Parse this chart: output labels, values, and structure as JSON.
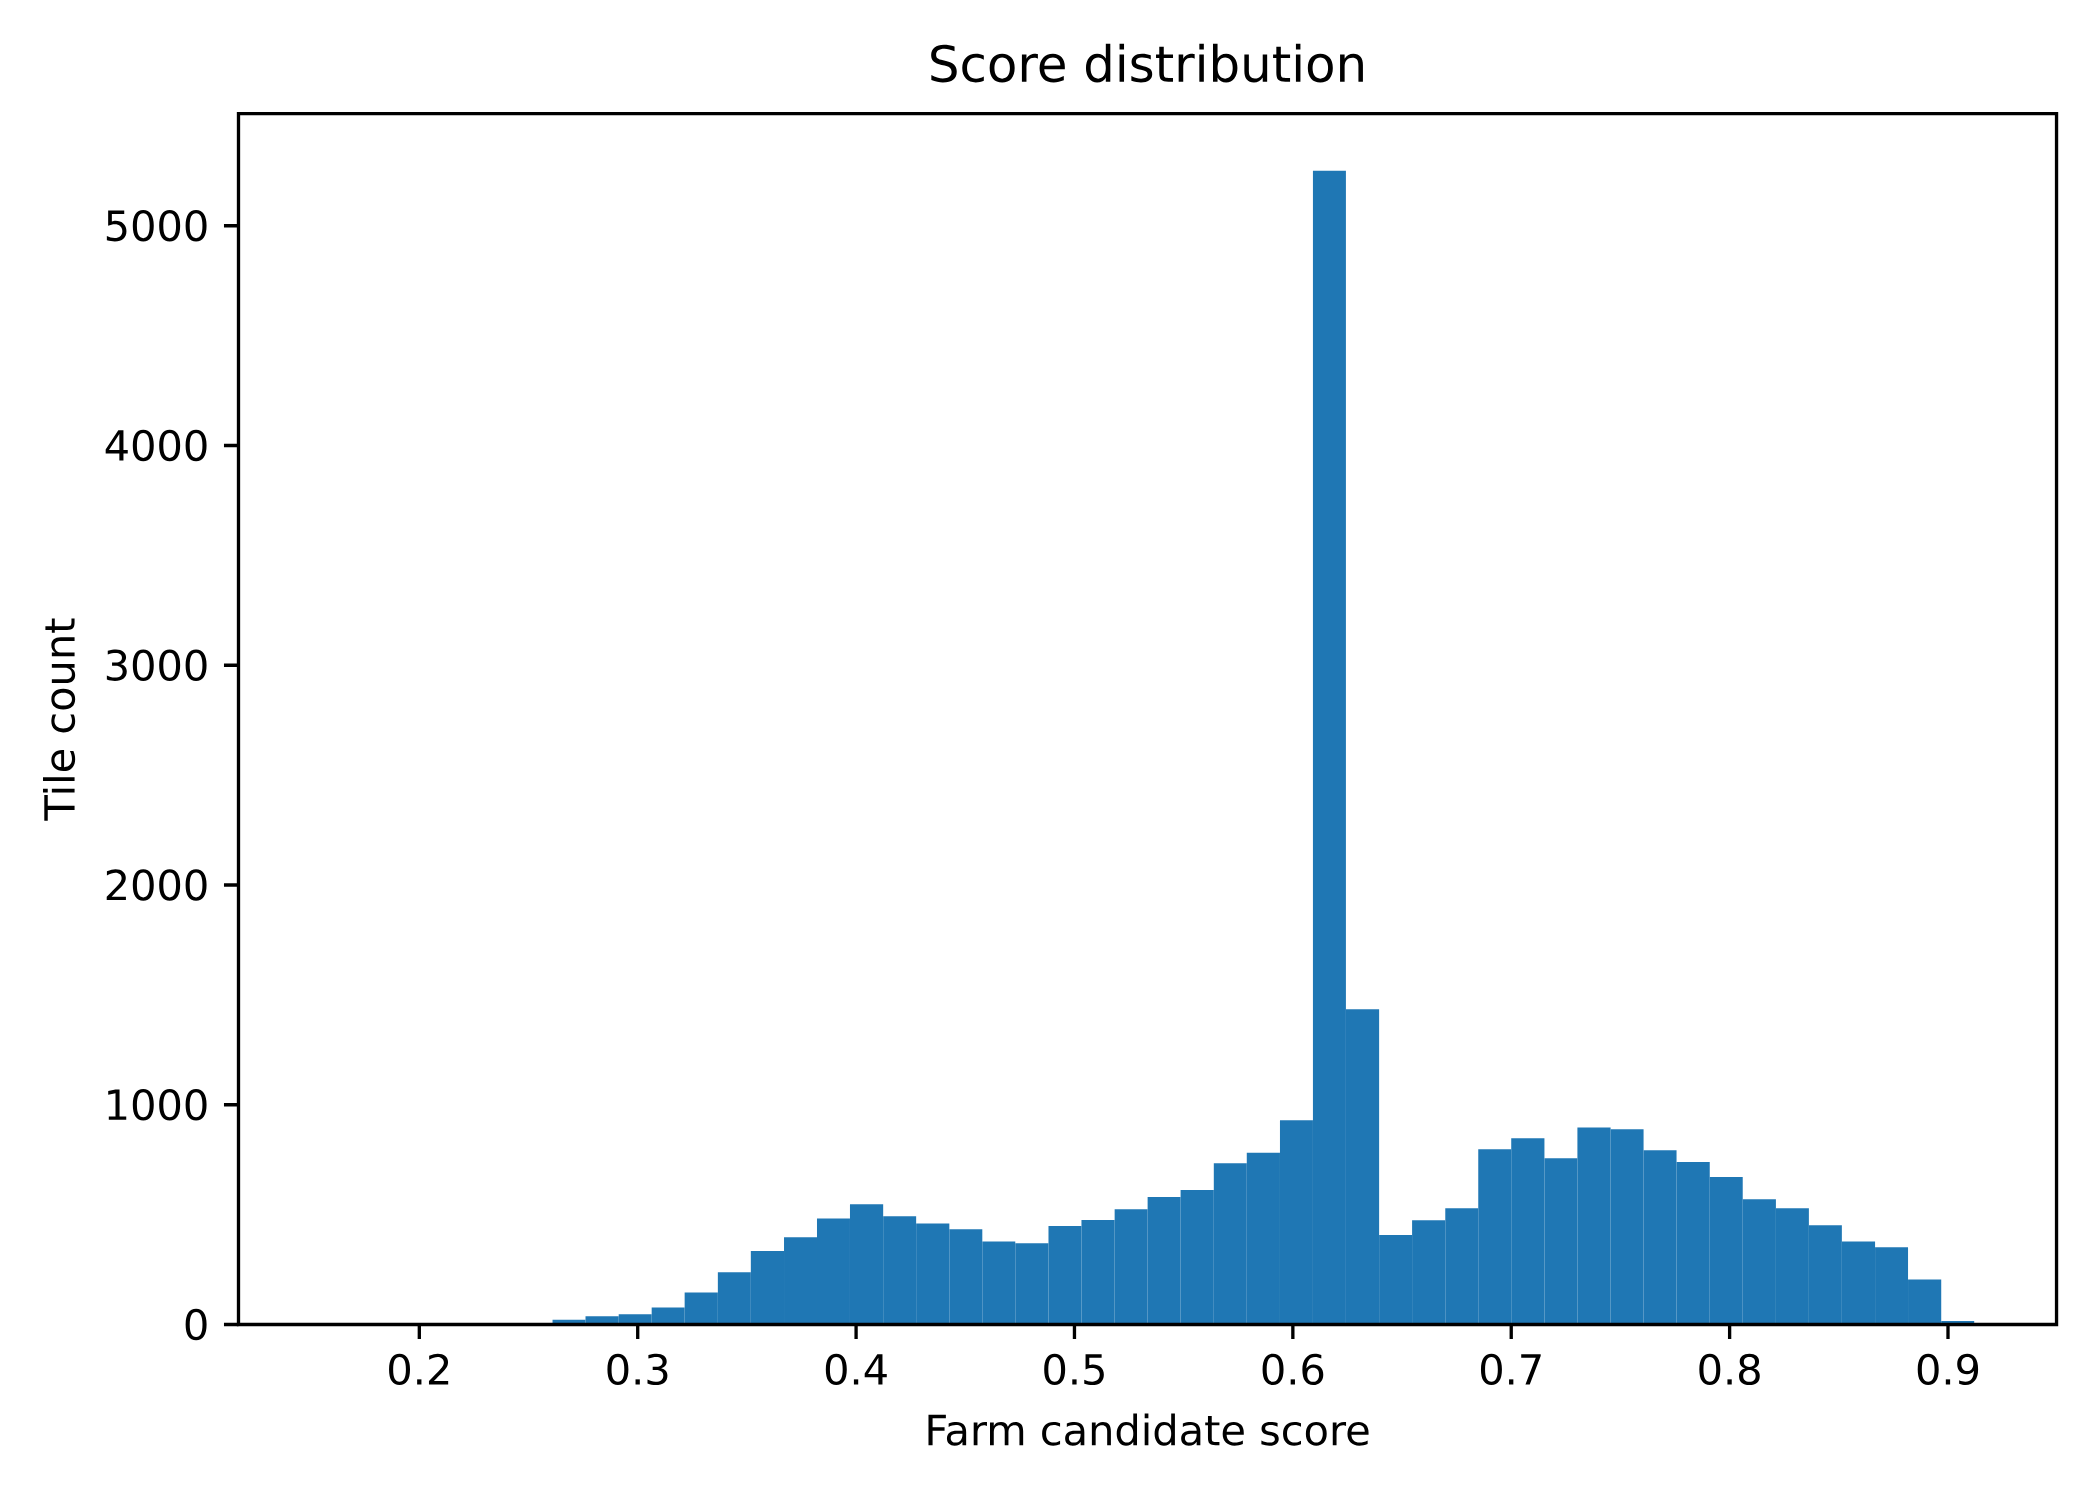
{
  "chart_data": {
    "type": "histogram",
    "title": "Score distribution",
    "xlabel": "Farm candidate score",
    "ylabel": "Tile count",
    "color": "#1f77b4",
    "bins": [
      0.155,
      0.1701,
      0.1853,
      0.2004,
      0.2156,
      0.2307,
      0.2458,
      0.261,
      0.2761,
      0.2913,
      0.3064,
      0.3215,
      0.3367,
      0.3518,
      0.367,
      0.3821,
      0.3972,
      0.4124,
      0.4275,
      0.4427,
      0.4578,
      0.4729,
      0.4881,
      0.5032,
      0.5184,
      0.5335,
      0.5486,
      0.5638,
      0.5789,
      0.5941,
      0.6092,
      0.6243,
      0.6395,
      0.6546,
      0.6698,
      0.6849,
      0.7,
      0.7152,
      0.7303,
      0.7455,
      0.7606,
      0.7757,
      0.7909,
      0.806,
      0.8212,
      0.8363,
      0.8514,
      0.8666,
      0.8817,
      0.8969,
      0.912
    ],
    "values": [
      0,
      0,
      0,
      0,
      0,
      0,
      6,
      22,
      37,
      47,
      77,
      146,
      238,
      334,
      397,
      482,
      547,
      492,
      460,
      433,
      378,
      370,
      448,
      476,
      525,
      580,
      612,
      734,
      781,
      930,
      5250,
      1435,
      407,
      474,
      529,
      798,
      848,
      757,
      897,
      889,
      793,
      739,
      671,
      570,
      529,
      452,
      378,
      352,
      205,
      16
    ],
    "xlim": [
      0.1172,
      0.9497
    ],
    "ylim": [
      0,
      5510
    ],
    "xticks": [
      0.2,
      0.3,
      0.4,
      0.5,
      0.6,
      0.7,
      0.8,
      0.9
    ],
    "yticks": [
      0,
      1000,
      2000,
      3000,
      4000,
      5000
    ]
  }
}
